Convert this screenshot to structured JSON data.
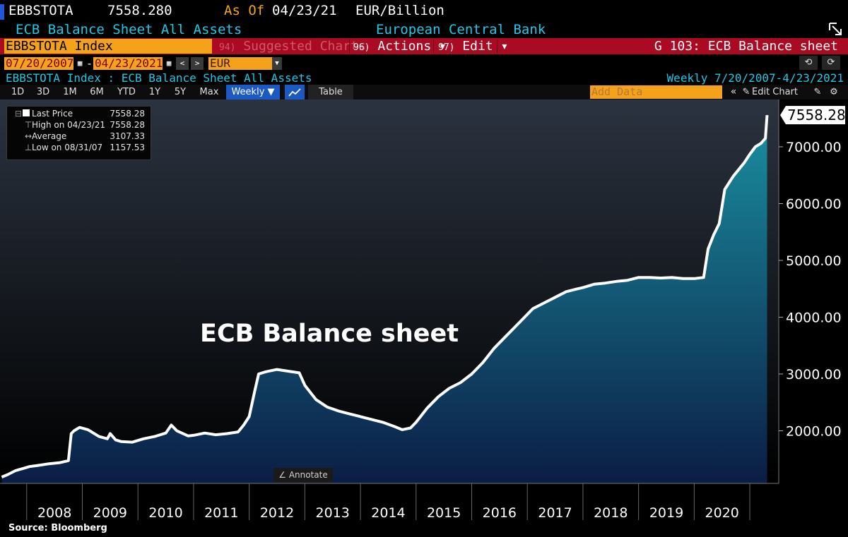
{
  "header": {
    "ticker": "EBBSTOTA",
    "value": "7558.280",
    "as_of_label": "As Of",
    "as_of_date": "04/23/21",
    "units": "EUR/Billion",
    "name": "ECB Balance Sheet All Assets",
    "source_name": "European Central Bank"
  },
  "toolbar": {
    "security": "EBBSTOTA Index",
    "suggested_num": "94)",
    "suggested": "Suggested Charts",
    "actions_num": "96)",
    "actions": "Actions ▾",
    "edit_num": "97)",
    "edit": "Edit ▾",
    "chart_id": "G 103: ECB Balance sheet"
  },
  "range": {
    "start": "07/20/2007",
    "dash": "-",
    "end": "04/23/2021",
    "prev": "<",
    "next": ">",
    "currency": "EUR"
  },
  "subheader": {
    "title": "EBBSTOTA Index : ECB Balance Sheet All Assets",
    "period": "Weekly  7/20/2007-4/23/2021"
  },
  "periods": [
    "1D",
    "3D",
    "1M",
    "6M",
    "YTD",
    "1Y",
    "5Y",
    "Max"
  ],
  "frequency": "Weekly ▼",
  "table_label": "Table",
  "add_data": "Add Data",
  "edit_chart": "Edit Chart",
  "legend": [
    {
      "label": "Last Price",
      "value": "7558.28"
    },
    {
      "label": "High on 04/23/21",
      "value": "7558.28"
    },
    {
      "label": "Average",
      "value": "3107.33"
    },
    {
      "label": "Low on 08/31/07",
      "value": "1157.53"
    }
  ],
  "annotate": "Annotate",
  "source": "Source: Bloomberg",
  "colors": {
    "line": "#ffffff",
    "fill_top": "#1a8fa0",
    "fill_bottom": "#0b1d45",
    "bg_top": "#2b3340",
    "bg_bottom": "#000000",
    "accent": "#f5a21b",
    "cyan": "#1ec8e6",
    "menu_bar": "#aa0b22"
  },
  "chart_data": {
    "type": "area",
    "title": "ECB Balance sheet",
    "xlabel": "",
    "ylabel": "",
    "ylim": [
      1100,
      7700
    ],
    "y_ticks": [
      2000,
      3000,
      4000,
      5000,
      6000,
      7000
    ],
    "y_tick_labels": [
      "2000.00",
      "3000.00",
      "4000.00",
      "5000.00",
      "6000.00",
      "7000.00"
    ],
    "x_labels": [
      "2008",
      "2009",
      "2010",
      "2011",
      "2012",
      "2013",
      "2014",
      "2015",
      "2016",
      "2017",
      "2018",
      "2019",
      "2020"
    ],
    "last_value_label": "7558.28",
    "grid": false,
    "series": [
      {
        "x": [
          2007.55,
          2007.66,
          2007.8,
          2007.95,
          2008.05,
          2008.2,
          2008.4,
          2008.6,
          2008.75,
          2008.8,
          2008.85,
          2008.95,
          2009.1,
          2009.3,
          2009.45,
          2009.5,
          2009.6,
          2009.7,
          2009.9,
          2010.1,
          2010.3,
          2010.5,
          2010.6,
          2010.7,
          2010.9,
          2011.0,
          2011.2,
          2011.4,
          2011.6,
          2011.8,
          2011.9,
          2012.0,
          2012.1,
          2012.17,
          2012.3,
          2012.5,
          2012.7,
          2012.9,
          2013.0,
          2013.2,
          2013.4,
          2013.6,
          2013.8,
          2014.0,
          2014.2,
          2014.4,
          2014.6,
          2014.75,
          2014.9,
          2015.0,
          2015.2,
          2015.4,
          2015.6,
          2015.8,
          2016.0,
          2016.2,
          2016.4,
          2016.6,
          2016.8,
          2017.0,
          2017.1,
          2017.3,
          2017.5,
          2017.7,
          2017.9,
          2018.0,
          2018.2,
          2018.4,
          2018.6,
          2018.8,
          2019.0,
          2019.2,
          2019.4,
          2019.6,
          2019.8,
          2020.0,
          2020.17,
          2020.25,
          2020.35,
          2020.45,
          2020.55,
          2020.7,
          2020.9,
          2021.0,
          2021.1,
          2021.2,
          2021.28,
          2021.31
        ],
        "y": [
          1185,
          1230,
          1300,
          1340,
          1370,
          1390,
          1420,
          1440,
          1475,
          1950,
          2000,
          2060,
          2020,
          1900,
          1860,
          1950,
          1840,
          1810,
          1800,
          1860,
          1900,
          1960,
          2100,
          2000,
          1910,
          1920,
          1960,
          1930,
          1950,
          1980,
          2100,
          2250,
          2700,
          3000,
          3040,
          3080,
          3050,
          3020,
          2800,
          2550,
          2420,
          2350,
          2300,
          2250,
          2200,
          2150,
          2080,
          2020,
          2050,
          2150,
          2400,
          2600,
          2750,
          2850,
          3000,
          3200,
          3450,
          3650,
          3850,
          4050,
          4150,
          4250,
          4350,
          4450,
          4500,
          4520,
          4580,
          4600,
          4630,
          4650,
          4700,
          4700,
          4690,
          4700,
          4680,
          4680,
          4700,
          5200,
          5450,
          5650,
          6250,
          6480,
          6720,
          6870,
          7000,
          7060,
          7150,
          7558
        ]
      }
    ]
  }
}
